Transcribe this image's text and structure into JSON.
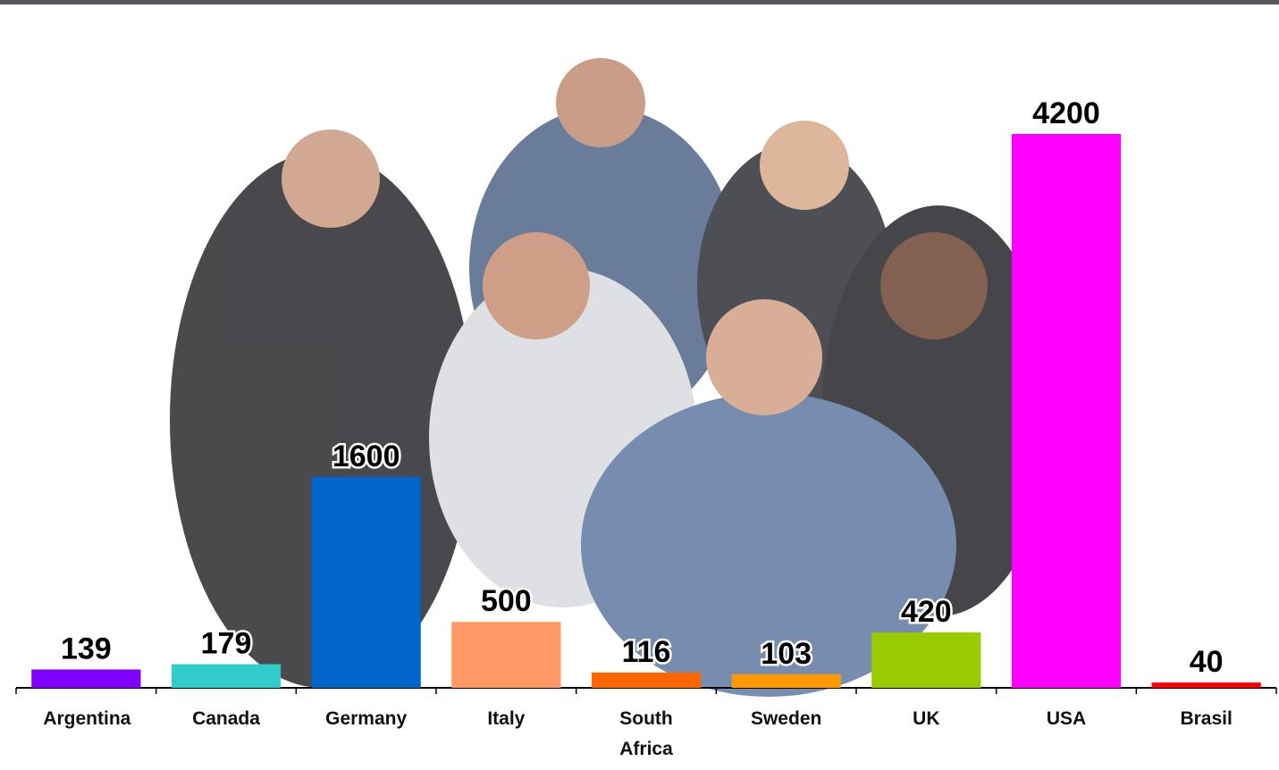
{
  "chart_data": {
    "type": "bar",
    "categories": [
      "Argentina",
      "Canada",
      "Germany",
      "Italy",
      "South Africa",
      "Sweden",
      "UK",
      "USA",
      "Brasil"
    ],
    "values": [
      139,
      179,
      1600,
      500,
      116,
      103,
      420,
      4200,
      40
    ],
    "colors": [
      "#8000ff",
      "#33cccc",
      "#0066cc",
      "#ff9966",
      "#ff6600",
      "#ff9900",
      "#99cc00",
      "#ff00ff",
      "#ff0000"
    ]
  }
}
